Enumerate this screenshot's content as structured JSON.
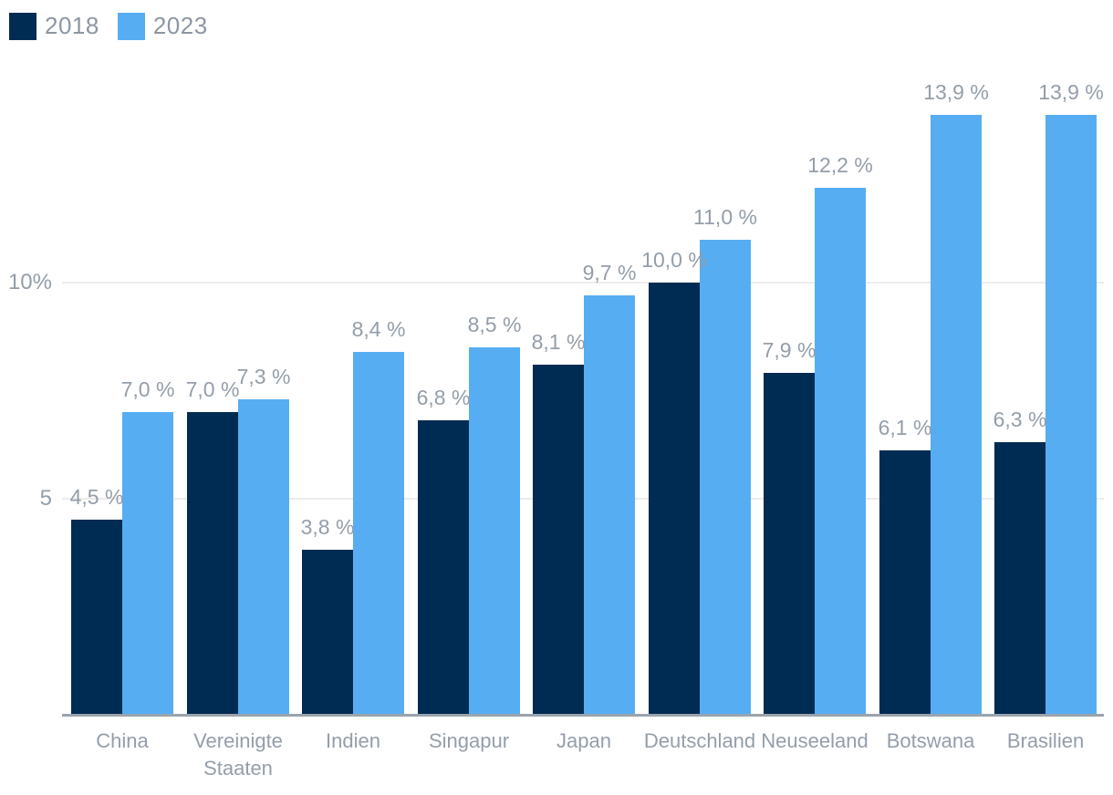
{
  "chart_data": {
    "type": "bar",
    "title": "",
    "xlabel": "",
    "ylabel": "",
    "categories": [
      "China",
      "Vereinigte Staaten",
      "Indien",
      "Singapur",
      "Japan",
      "Deutschland",
      "Neuseeland",
      "Botswana",
      "Brasilien"
    ],
    "series": [
      {
        "name": "2018",
        "color": "#002b52",
        "values": [
          4.5,
          7.0,
          3.8,
          6.8,
          8.1,
          10.0,
          7.9,
          6.1,
          6.3
        ],
        "labels": [
          "4,5 %",
          "7,0 %",
          "3,8 %",
          "6,8 %",
          "8,1 %",
          "10,0 %",
          "7,9 %",
          "6,1 %",
          "6,3 %"
        ]
      },
      {
        "name": "2023",
        "color": "#56adf2",
        "values": [
          7.0,
          7.3,
          8.4,
          8.5,
          9.7,
          11.0,
          12.2,
          13.9,
          13.9
        ],
        "labels": [
          "7,0 %",
          "7,3 %",
          "8,4 %",
          "8,5 %",
          "9,7 %",
          "11,0 %",
          "12,2 %",
          "13,9 %",
          "13,9 %"
        ]
      }
    ],
    "yticks": [
      {
        "value": 5,
        "label": "5"
      },
      {
        "value": 10,
        "label": "10%"
      }
    ],
    "ylim": [
      0,
      14.9
    ],
    "grid": "horizontal",
    "legend_position": "top-left"
  },
  "colors": {
    "series_2018": "#002b52",
    "series_2023": "#56adf2",
    "text": "#949ea9",
    "gridline": "#ececec",
    "axis_line": "#9aa4ae",
    "background": "#ffffff"
  }
}
